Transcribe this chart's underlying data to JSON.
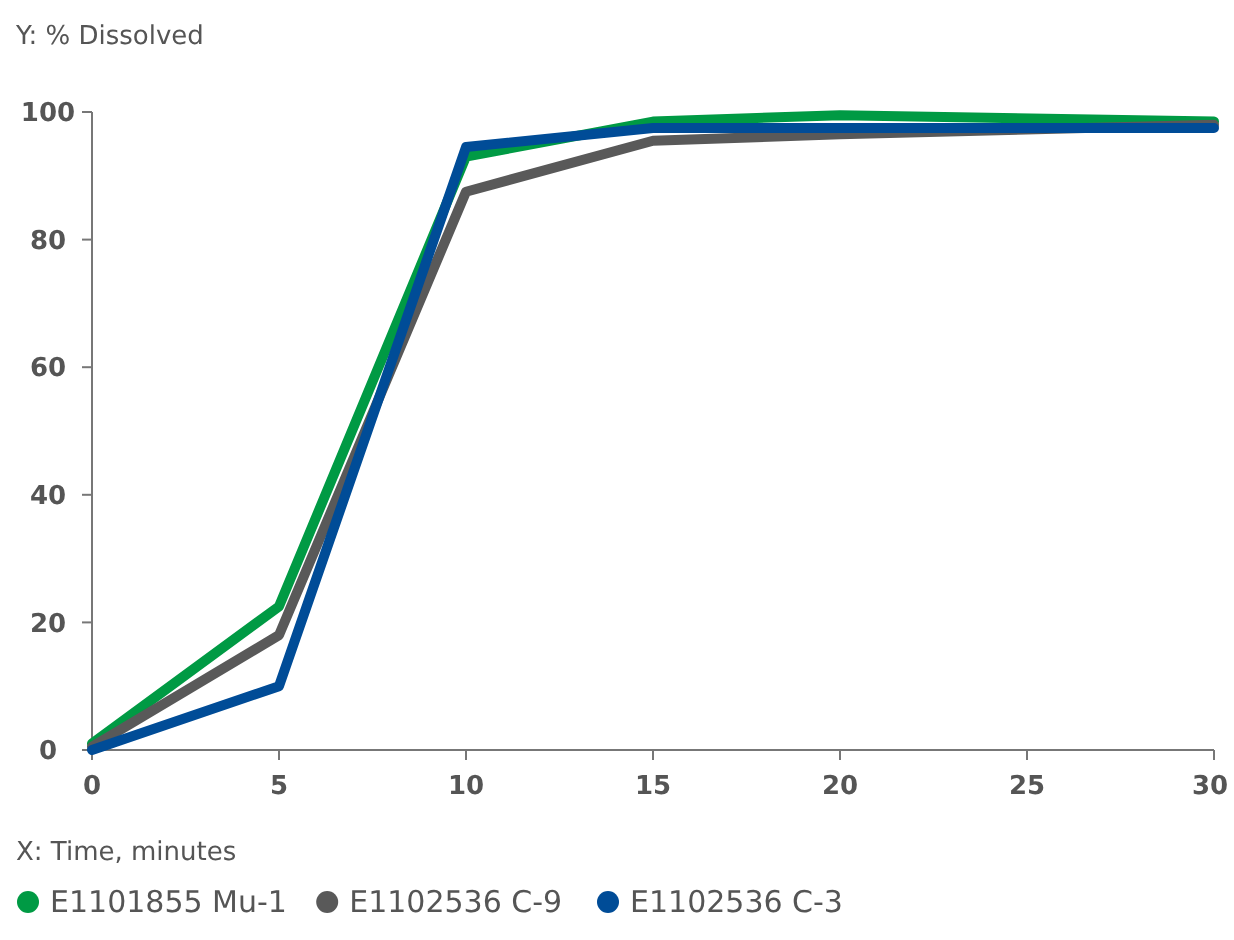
{
  "chart_data": {
    "type": "line",
    "ylabel": "Y: % Dissolved",
    "xlabel": "X: Time, minutes",
    "x": [
      0,
      5,
      10,
      15,
      20,
      30
    ],
    "series": [
      {
        "name": "E1101855 Mu-1",
        "color": "#009a44",
        "values": [
          1,
          22.5,
          93,
          98.5,
          99.5,
          98.5
        ]
      },
      {
        "name": "E1102536 C-9",
        "color": "#595959",
        "values": [
          0.5,
          18,
          87.5,
          95.5,
          96.5,
          98
        ]
      },
      {
        "name": "E1102536 C-3",
        "color": "#004c97",
        "values": [
          0,
          10,
          94.5,
          97.5,
          97.5,
          97.5
        ]
      }
    ],
    "xlim": [
      0,
      30
    ],
    "xticks": [
      0,
      5,
      10,
      15,
      20,
      25,
      30
    ],
    "ylim": [
      0,
      100
    ],
    "yticks": [
      0,
      20,
      40,
      60,
      80,
      100
    ],
    "grid": false,
    "legend": "bottom",
    "marker": "none",
    "line_style": "solid"
  }
}
